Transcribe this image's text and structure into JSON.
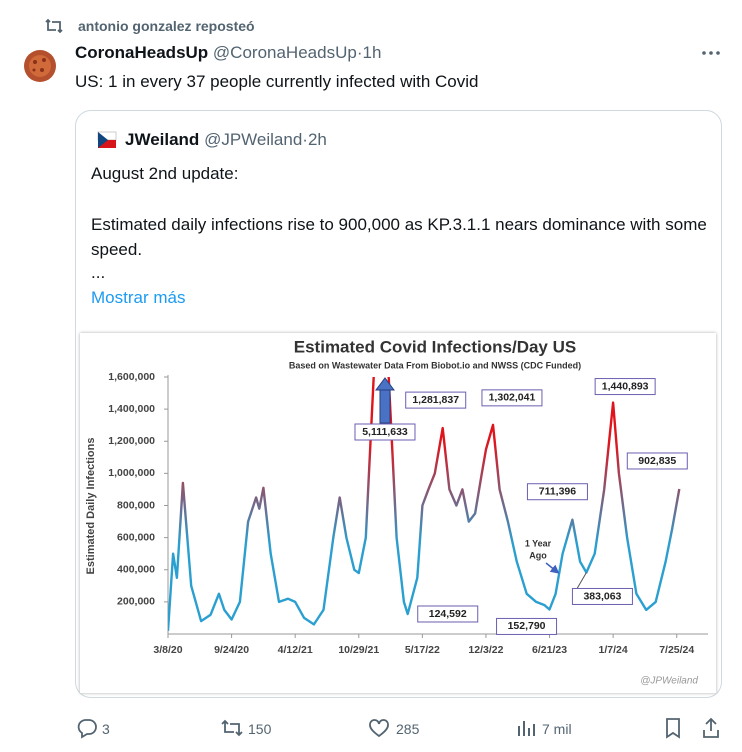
{
  "repost": {
    "text": "antonio gonzalez reposteó"
  },
  "post": {
    "name": "CoronaHeadsUp",
    "handle": "@CoronaHeadsUp",
    "separator": "·",
    "time": "1h",
    "text": "US: 1 in every 37 people currently infected with Covid"
  },
  "quote": {
    "name": "JWeiland",
    "handle": "@JPWeiland",
    "separator": "·",
    "time": "2h",
    "lines": [
      "August 2nd update:",
      "Estimated daily infections rise to 900,000 as KP.3.1.1 nears dominance with some speed.",
      "..."
    ],
    "more": "Mostrar más"
  },
  "actions": {
    "replies": "3",
    "reposts": "150",
    "likes": "285",
    "views": "7 mil"
  },
  "chart_data": {
    "type": "line",
    "title": "Estimated Covid Infections/Day US",
    "subtitle": "Based on Wastewater Data From Biobot.io and NWSS (CDC Funded)",
    "ylabel": "Estimated Daily Infections",
    "watermark": "@JPWeiland",
    "annotation": [
      "1 Year",
      "Ago"
    ],
    "colors": {
      "low": "#2a9fd0",
      "high": "#e0141c",
      "label_border": "#6a5fb0"
    },
    "x": [
      "3/8/20",
      "3/24/20",
      "4/5/20",
      "4/24/20",
      "5/20/20",
      "6/20/20",
      "7/20/20",
      "8/15/20",
      "9/1/20",
      "9/24/20",
      "10/20/20",
      "11/15/20",
      "12/10/20",
      "12/20/20",
      "1/2/21",
      "1/25/21",
      "2/20/21",
      "3/20/21",
      "4/12/21",
      "5/10/21",
      "6/10/21",
      "7/10/21",
      "8/10/21",
      "8/30/21",
      "9/20/21",
      "10/15/21",
      "10/29/21",
      "11/20/21",
      "12/15/21",
      "1/10/22",
      "1/31/22",
      "2/25/22",
      "3/20/22",
      "4/1/22",
      "5/1/22",
      "5/17/22",
      "6/5/22",
      "6/25/22",
      "7/20/22",
      "8/10/22",
      "9/1/22",
      "9/20/22",
      "10/10/22",
      "10/30/22",
      "11/20/22",
      "12/3/22",
      "12/25/22",
      "1/15/23",
      "2/10/23",
      "3/10/23",
      "4/10/23",
      "5/10/23",
      "6/5/23",
      "6/21/23",
      "7/10/23",
      "8/1/23",
      "9/1/23",
      "9/25/23",
      "10/15/23",
      "11/10/23",
      "12/10/23",
      "1/7/24",
      "1/25/24",
      "2/20/24",
      "3/20/24",
      "4/20/24",
      "5/20/24",
      "6/20/24",
      "7/10/24",
      "8/2/24"
    ],
    "series": [
      {
        "name": "Estimated Daily Infections",
        "values": [
          20000,
          500000,
          350000,
          940000,
          300000,
          80000,
          120000,
          250000,
          150000,
          90000,
          200000,
          700000,
          850000,
          780000,
          910000,
          500000,
          200000,
          220000,
          200000,
          100000,
          60000,
          150000,
          600000,
          850000,
          600000,
          400000,
          380000,
          600000,
          1600000,
          5111633,
          1600000,
          600000,
          200000,
          124592,
          350000,
          800000,
          900000,
          1000000,
          1281837,
          900000,
          800000,
          900000,
          700000,
          750000,
          1000000,
          1150000,
          1302041,
          900000,
          700000,
          450000,
          250000,
          200000,
          180000,
          152790,
          250000,
          500000,
          711396,
          450000,
          383063,
          500000,
          900000,
          1440893,
          1000000,
          600000,
          250000,
          150000,
          200000,
          450000,
          650000,
          902835
        ],
        "value_labels": [
          null,
          null,
          null,
          null,
          null,
          null,
          null,
          null,
          null,
          null,
          null,
          null,
          null,
          null,
          null,
          null,
          null,
          null,
          null,
          null,
          null,
          null,
          null,
          null,
          null,
          null,
          null,
          null,
          null,
          "5,111,633",
          null,
          null,
          null,
          "124,592",
          null,
          null,
          null,
          null,
          "1,281,837",
          null,
          null,
          null,
          null,
          null,
          null,
          null,
          "1,302,041",
          null,
          null,
          null,
          null,
          null,
          null,
          "152,790",
          null,
          null,
          "711,396",
          null,
          "383,063",
          null,
          null,
          "1,440,893",
          null,
          null,
          null,
          null,
          null,
          null,
          null,
          "902,835"
        ]
      }
    ],
    "xlim": [
      "3/8/20",
      "8/20/24"
    ],
    "xticks": [
      "3/8/20",
      "9/24/20",
      "4/12/21",
      "10/29/21",
      "5/17/22",
      "12/3/22",
      "6/21/23",
      "1/7/24",
      "7/25/24"
    ],
    "ylim": [
      0,
      1600000
    ],
    "yticks": [
      {
        "value": 200000,
        "label": "200,000"
      },
      {
        "value": 400000,
        "label": "400,000"
      },
      {
        "value": 600000,
        "label": "600,000"
      },
      {
        "value": 800000,
        "label": "800,000"
      },
      {
        "value": 1000000,
        "label": "1,000,000"
      },
      {
        "value": 1200000,
        "label": "1,200,000"
      },
      {
        "value": 1400000,
        "label": "1,400,000"
      },
      {
        "value": 1600000,
        "label": "1,600,000"
      }
    ],
    "grid": false
  }
}
